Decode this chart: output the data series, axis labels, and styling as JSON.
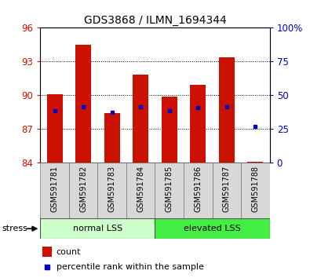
{
  "title": "GDS3868 / ILMN_1694344",
  "categories": [
    "GSM591781",
    "GSM591782",
    "GSM591783",
    "GSM591784",
    "GSM591785",
    "GSM591786",
    "GSM591787",
    "GSM591788"
  ],
  "bar_tops": [
    90.1,
    94.5,
    88.4,
    91.8,
    89.9,
    90.9,
    93.4,
    84.05
  ],
  "bar_bottoms": [
    84.0,
    84.0,
    84.0,
    84.0,
    84.0,
    84.0,
    84.0,
    84.0
  ],
  "percentile_left_axis": [
    88.6,
    89.0,
    88.5,
    89.0,
    88.6,
    88.9,
    89.0,
    87.25
  ],
  "bar_color": "#cc1100",
  "percentile_color": "#0000cc",
  "ylim": [
    84,
    96
  ],
  "yticks": [
    84,
    87,
    90,
    93,
    96
  ],
  "y2lim": [
    0,
    100
  ],
  "y2ticks": [
    0,
    25,
    50,
    75,
    100
  ],
  "y2labels": [
    "0",
    "25",
    "50",
    "75",
    "100%"
  ],
  "grid_yticks": [
    87,
    90,
    93
  ],
  "group1_label": "normal LSS",
  "group2_label": "elevated LSS",
  "stress_label": "stress",
  "legend_count": "count",
  "legend_percentile": "percentile rank within the sample",
  "group1_color": "#ccffcc",
  "group2_color": "#44ee44",
  "bar_width": 0.55,
  "ylabel_left_color": "#cc1100",
  "ylabel_right_color": "#0000cc"
}
